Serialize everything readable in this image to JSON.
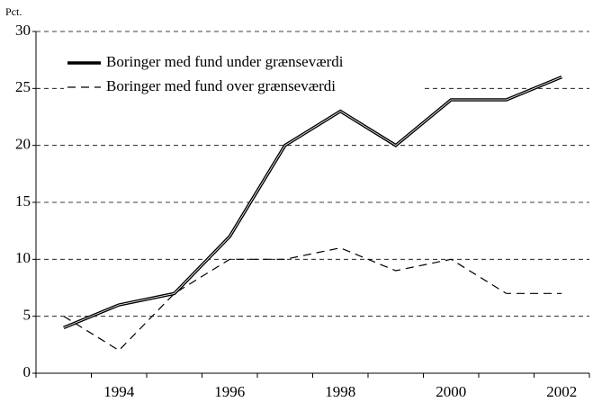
{
  "chart_data": {
    "type": "line",
    "ylabel": "Pct.",
    "categories": [
      null,
      "1994",
      null,
      "1996",
      null,
      "1998",
      null,
      "2000",
      null,
      "2002"
    ],
    "series": [
      {
        "name": "Boringer med fund under grænseværdi",
        "color": "#000000",
        "dash": false,
        "values": [
          4,
          6,
          7,
          12,
          20,
          23,
          20,
          24,
          24,
          26
        ]
      },
      {
        "name": "Boringer med fund over grænseværdi",
        "color": "#000000",
        "dash": true,
        "values": [
          5,
          2,
          7,
          10,
          10,
          11,
          9,
          10,
          7,
          7
        ]
      }
    ],
    "ylim": [
      0,
      30
    ],
    "yticks": [
      0,
      5,
      10,
      15,
      20,
      25,
      30
    ],
    "grid": true,
    "legend": "upper left"
  }
}
